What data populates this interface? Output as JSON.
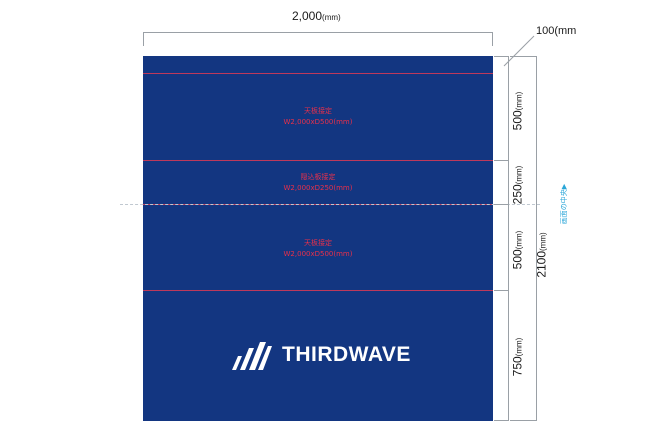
{
  "dimensions": {
    "width_label": "2,000",
    "width_unit": "(mm)",
    "extra_label": "100(mm",
    "total_height_label": "2100",
    "total_height_unit": "(mm)",
    "segments": [
      {
        "value": "500",
        "unit": "(mm)"
      },
      {
        "value": "250",
        "unit": "(mm)"
      },
      {
        "value": "500",
        "unit": "(mm)"
      },
      {
        "value": "750",
        "unit": "(mm)"
      }
    ]
  },
  "zones": [
    {
      "title": "天板接定",
      "size": "W2,000xD500(mm)"
    },
    {
      "title": "隠込板接定",
      "size": "W2,000xD250(mm)"
    },
    {
      "title": "天板接定",
      "size": "W2,000xD500(mm)"
    }
  ],
  "center_marker": {
    "label": "画面の中央",
    "arrow": "▶"
  },
  "logo": {
    "text": "THIRDWAVE",
    "icon": "thirdwave-logo-icon"
  },
  "colors": {
    "panel": "#133681",
    "guide_lines": "#d23a56",
    "zone_text": "#e8304a",
    "center_marker": "#2aa6d8"
  }
}
